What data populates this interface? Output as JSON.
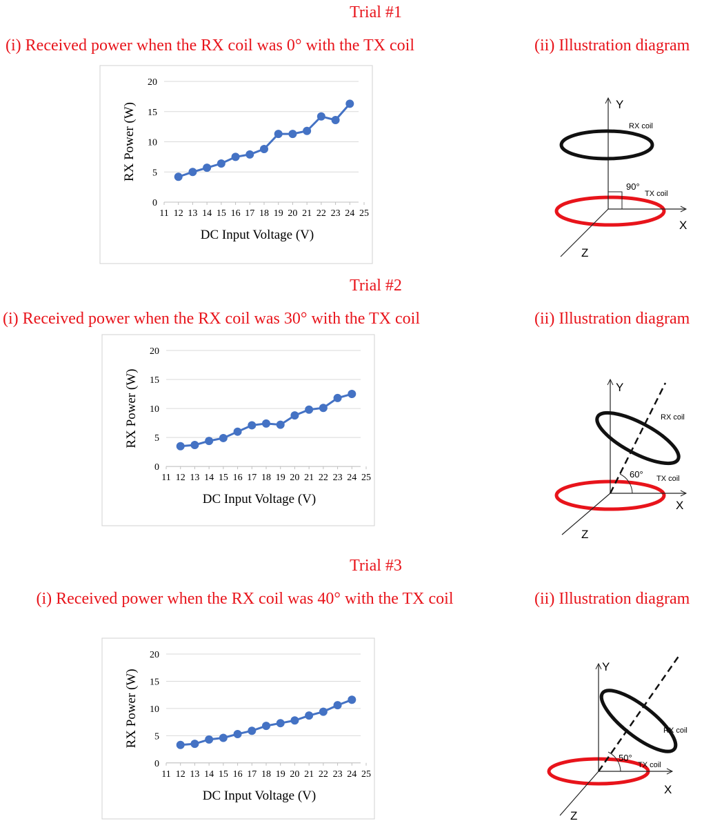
{
  "panels": [
    {
      "trial": "Trial #1",
      "diagram_title": "(ii) Illustration diagram",
      "diagram": {
        "y_axis": "Y",
        "x_axis": "X",
        "z_axis": "Z",
        "rx_label": "RX coil",
        "tx_label": "TX coil",
        "angle": "90°"
      }
    },
    {
      "trial": "Trial #2",
      "diagram_title": "(ii) Illustration diagram",
      "diagram": {
        "y_axis": "Y",
        "x_axis": "X",
        "z_axis": "Z",
        "rx_label": "RX coil",
        "tx_label": "TX coil",
        "angle": "60°"
      }
    },
    {
      "trial": "Trial #3",
      "diagram_title": "(ii) Illustration diagram",
      "diagram": {
        "y_axis": "Y",
        "x_axis": "X",
        "z_axis": "Z",
        "rx_label": "RX coil",
        "tx_label": "TX coil",
        "angle": "50°"
      }
    }
  ],
  "chart_data": [
    {
      "type": "line",
      "title": "(i) Received power when the RX coil was 0° with the TX coil",
      "xlabel": "DC Input Voltage (V)",
      "ylabel": "RX Power  (W)",
      "x": [
        12,
        13,
        14,
        15,
        16,
        17,
        18,
        19,
        20,
        21,
        22,
        23,
        24
      ],
      "values": [
        4.2,
        5.0,
        5.7,
        6.4,
        7.5,
        7.9,
        8.8,
        11.3,
        11.3,
        11.8,
        14.2,
        13.6,
        16.3
      ],
      "color": "#4472c4",
      "xlim": [
        11,
        25
      ],
      "xticks": [
        11,
        12,
        13,
        14,
        15,
        16,
        17,
        18,
        19,
        20,
        21,
        22,
        23,
        24,
        25
      ],
      "ylim": [
        0,
        20
      ],
      "yticks": [
        0,
        5,
        10,
        15,
        20
      ],
      "grid": true
    },
    {
      "type": "line",
      "title": "(i) Received power when the RX coil was 30° with the TX coil",
      "xlabel": "DC Input Voltage (V)",
      "ylabel": "RX Power  (W)",
      "x": [
        12,
        13,
        14,
        15,
        16,
        17,
        18,
        19,
        20,
        21,
        22,
        23,
        24
      ],
      "values": [
        3.5,
        3.7,
        4.4,
        4.9,
        6.0,
        7.1,
        7.4,
        7.2,
        8.8,
        9.8,
        10.1,
        11.8,
        12.5
      ],
      "color": "#4472c4",
      "xlim": [
        11,
        25
      ],
      "xticks": [
        11,
        12,
        13,
        14,
        15,
        16,
        17,
        18,
        19,
        20,
        21,
        22,
        23,
        24,
        25
      ],
      "ylim": [
        0,
        20
      ],
      "yticks": [
        0,
        5,
        10,
        15,
        20
      ],
      "grid": true
    },
    {
      "type": "line",
      "title": "(i)  Received power when the RX coil was 40° with the TX coil",
      "xlabel": "DC Input Voltage (V)",
      "ylabel": "RX Power  (W)",
      "x": [
        12,
        13,
        14,
        15,
        16,
        17,
        18,
        19,
        20,
        21,
        22,
        23,
        24
      ],
      "values": [
        3.3,
        3.5,
        4.3,
        4.6,
        5.3,
        5.9,
        6.8,
        7.3,
        7.8,
        8.7,
        9.4,
        10.6,
        11.6
      ],
      "color": "#4472c4",
      "xlim": [
        11,
        25
      ],
      "xticks": [
        11,
        12,
        13,
        14,
        15,
        16,
        17,
        18,
        19,
        20,
        21,
        22,
        23,
        24,
        25
      ],
      "ylim": [
        0,
        20
      ],
      "yticks": [
        0,
        5,
        10,
        15,
        20
      ],
      "grid": true
    }
  ]
}
